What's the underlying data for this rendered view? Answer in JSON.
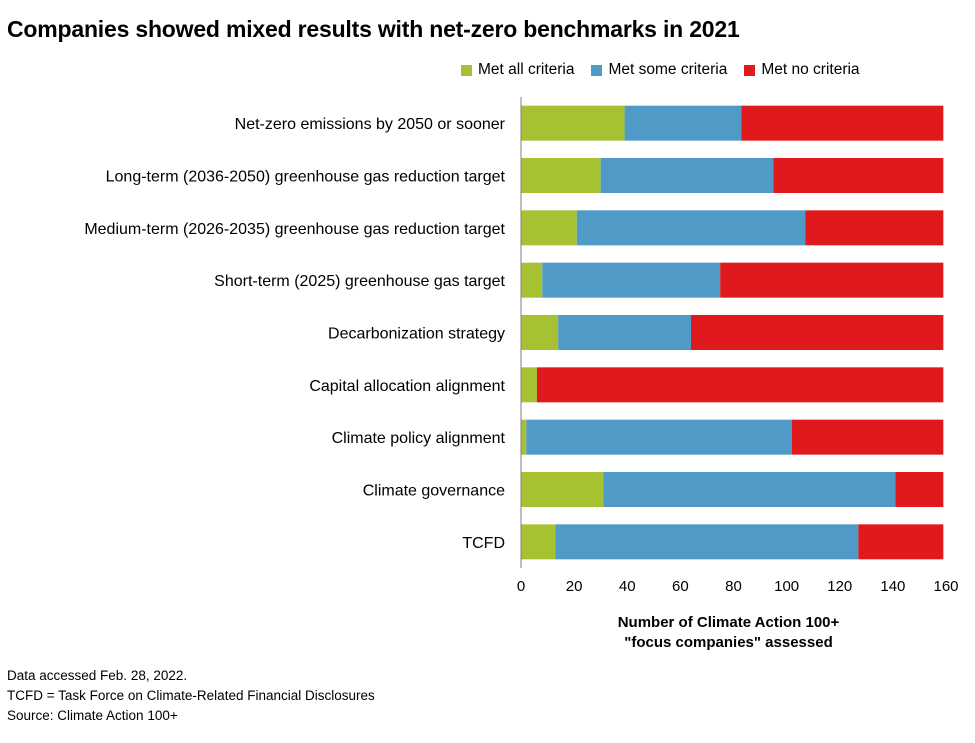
{
  "chart_data": {
    "type": "bar",
    "orientation": "horizontal",
    "stacked": true,
    "title": "Companies showed mixed results with net-zero benchmarks in 2021",
    "xlabel": "Number of Climate Action 100+\n\"focus companies\" assessed",
    "ylabel": "",
    "xlim": [
      0,
      160
    ],
    "xticks": [
      0,
      20,
      40,
      60,
      80,
      100,
      120,
      140,
      160
    ],
    "grid": false,
    "legend_position": "top-right",
    "categories": [
      "Net-zero emissions by 2050 or sooner",
      "Long-term (2036-2050) greenhouse gas reduction target",
      "Medium-term (2026-2035) greenhouse gas reduction target",
      "Short-term (2025) greenhouse gas target",
      "Decarbonization strategy",
      "Capital allocation alignment",
      "Climate policy alignment",
      "Climate governance",
      "TCFD"
    ],
    "series": [
      {
        "name": "Met all criteria",
        "color": "#a6c232",
        "values": [
          39,
          30,
          21,
          8,
          14,
          6,
          2,
          31,
          13
        ]
      },
      {
        "name": "Met some criteria",
        "color": "#4f9ac6",
        "values": [
          44,
          65,
          86,
          67,
          50,
          0,
          100,
          110,
          114
        ]
      },
      {
        "name": "Met no criteria",
        "color": "#e0191d",
        "values": [
          76,
          64,
          52,
          84,
          95,
          153,
          57,
          18,
          32
        ]
      }
    ]
  },
  "footnotes": [
    "Data accessed Feb. 28, 2022.",
    "TCFD = Task Force on Climate-Related Financial Disclosures",
    "Source: Climate Action 100+"
  ]
}
